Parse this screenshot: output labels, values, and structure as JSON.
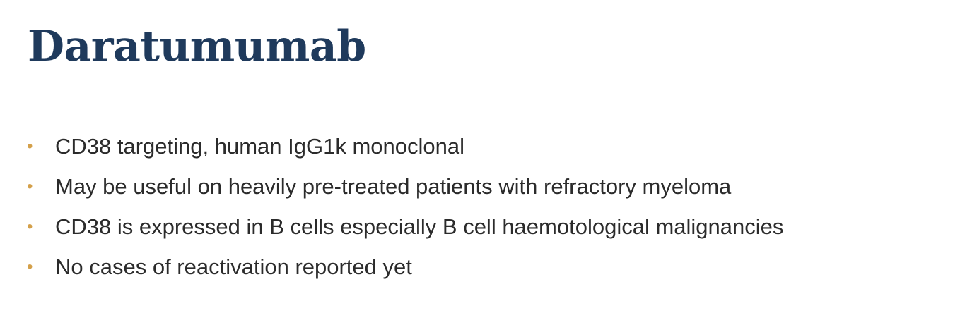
{
  "slide": {
    "title": "Daratumumab",
    "bullet_symbol": "•",
    "bullets": [
      "CD38 targeting, human IgG1k monoclonal",
      "May be useful on heavily pre-treated patients with refractory myeloma",
      "CD38 is expressed in B cells especially B cell haemotological malignancies",
      "No cases of reactivation reported yet"
    ]
  },
  "colors": {
    "title": "#1f3a5c",
    "bullet_marker": "#d4a04a",
    "body_text": "#2b2b2b",
    "background": "#ffffff"
  }
}
